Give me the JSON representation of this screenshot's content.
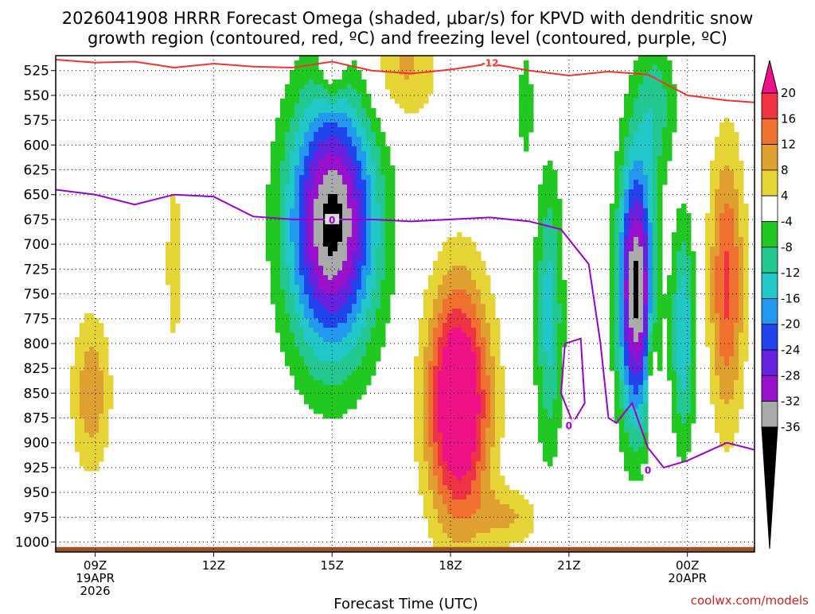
{
  "title_line1": "2026041908 HRRR Forecast Omega (shaded, μbar/s) for KPVD with dendritic snow",
  "title_line2": "growth region (contoured, red, ºC) and freezing level (contoured, purple, ºC)",
  "xlabel": "Forecast Time (UTC)",
  "credit": "coolwx.com/models",
  "chart_data": {
    "type": "heatmap",
    "x_range_hours": [
      8,
      25.7
    ],
    "y_range_mb": [
      1010,
      510
    ],
    "y_ticks": [
      525,
      550,
      575,
      600,
      625,
      650,
      675,
      700,
      725,
      750,
      775,
      800,
      825,
      850,
      875,
      900,
      925,
      950,
      975,
      1000
    ],
    "x_ticks": [
      {
        "hour": 9,
        "label": "09Z",
        "sub1": "19APR",
        "sub2": "2026"
      },
      {
        "hour": 12,
        "label": "12Z",
        "sub1": "",
        "sub2": ""
      },
      {
        "hour": 15,
        "label": "15Z",
        "sub1": "",
        "sub2": ""
      },
      {
        "hour": 18,
        "label": "18Z",
        "sub1": "",
        "sub2": ""
      },
      {
        "hour": 21,
        "label": "21Z",
        "sub1": "",
        "sub2": ""
      },
      {
        "hour": 24,
        "label": "00Z",
        "sub1": "20APR",
        "sub2": ""
      }
    ],
    "colorbar": {
      "labels": [
        "20",
        "16",
        "12",
        "8",
        "4",
        "-4",
        "-8",
        "-12",
        "-16",
        "-20",
        "-24",
        "-28",
        "-32",
        "-36"
      ],
      "bins": [
        {
          "lo": 16,
          "hi": 20,
          "color": "#ee3344"
        },
        {
          "lo": 12,
          "hi": 16,
          "color": "#f07030"
        },
        {
          "lo": 8,
          "hi": 12,
          "color": "#e0a030"
        },
        {
          "lo": 4,
          "hi": 8,
          "color": "#e6d436"
        },
        {
          "lo": -4,
          "hi": 4,
          "color": "#ffffff"
        },
        {
          "lo": -8,
          "hi": -4,
          "color": "#22c822"
        },
        {
          "lo": -12,
          "hi": -8,
          "color": "#22c890"
        },
        {
          "lo": -16,
          "hi": -12,
          "color": "#22c8c8"
        },
        {
          "lo": -20,
          "hi": -16,
          "color": "#2299ee"
        },
        {
          "lo": -24,
          "hi": -20,
          "color": "#2244ee"
        },
        {
          "lo": -28,
          "hi": -24,
          "color": "#6622dd"
        },
        {
          "lo": -32,
          "hi": -28,
          "color": "#9911cc"
        },
        {
          "lo": -36,
          "hi": -32,
          "color": "#aaaaaa"
        }
      ],
      "above_color": "#ee1188",
      "below_color": "#000000"
    },
    "omega_features": [
      {
        "name": "upward-motion-core-15z",
        "hour": 15.0,
        "pressure": 680,
        "peak": -38,
        "sx": 1.1,
        "sy": 130
      },
      {
        "name": "upward-motion-core-2130z",
        "hour": 22.7,
        "pressure": 745,
        "peak": -38,
        "sx": 0.45,
        "sy": 130
      },
      {
        "name": "upward-motion-2030z",
        "hour": 20.5,
        "pressure": 770,
        "peak": -14,
        "sx": 0.35,
        "sy": 140
      },
      {
        "name": "upward-motion-2345z",
        "hour": 23.9,
        "pressure": 790,
        "peak": -16,
        "sx": 0.3,
        "sy": 110
      },
      {
        "name": "upward-motion-upper-23z",
        "hour": 23.2,
        "pressure": 560,
        "peak": -10,
        "sx": 0.5,
        "sy": 70
      },
      {
        "name": "upward-motion-upper-20z",
        "hour": 19.9,
        "pressure": 560,
        "peak": -7,
        "sx": 0.2,
        "sy": 60
      },
      {
        "name": "sinking-motion-18z",
        "hour": 18.2,
        "pressure": 860,
        "peak": 30,
        "sx": 0.8,
        "sy": 120
      },
      {
        "name": "sinking-motion-1030z",
        "hour": 8.9,
        "pressure": 850,
        "peak": 11,
        "sx": 0.5,
        "sy": 80
      },
      {
        "name": "sinking-motion-0030z",
        "hour": 25.0,
        "pressure": 740,
        "peak": 17,
        "sx": 0.45,
        "sy": 140
      },
      {
        "name": "sinking-motion-2330z",
        "hour": 23.1,
        "pressure": 830,
        "peak": 10,
        "sx": 0.12,
        "sy": 60
      },
      {
        "name": "sinking-motion-17z",
        "hour": 16.8,
        "pressure": 520,
        "peak": 9,
        "sx": 0.9,
        "sy": 60
      },
      {
        "name": "sinking-motion-15z-top",
        "hour": 15.0,
        "pressure": 520,
        "peak": 9,
        "sx": 0.35,
        "sy": 35
      },
      {
        "name": "sinking-motion-11z",
        "hour": 11.0,
        "pressure": 720,
        "peak": 5,
        "sx": 0.35,
        "sy": 150
      },
      {
        "name": "sinking-motion-1930z-low",
        "hour": 19.5,
        "pressure": 975,
        "peak": 8,
        "sx": 0.8,
        "sy": 30
      }
    ],
    "dendritic_growth_minus12C_line": [
      [
        8.0,
        514
      ],
      [
        9.0,
        517
      ],
      [
        10.0,
        516
      ],
      [
        11.0,
        522
      ],
      [
        12.0,
        518
      ],
      [
        13.0,
        521
      ],
      [
        14.0,
        522
      ],
      [
        15.0,
        516
      ],
      [
        16.0,
        525
      ],
      [
        17.0,
        528
      ],
      [
        18.0,
        524
      ],
      [
        19.0,
        518
      ],
      [
        20.0,
        525
      ],
      [
        21.0,
        530
      ],
      [
        22.0,
        526
      ],
      [
        23.0,
        529
      ],
      [
        24.0,
        550
      ],
      [
        25.0,
        555
      ],
      [
        25.7,
        557
      ]
    ],
    "dendritic_growth_label": "-12",
    "freezing_level_0C_line": [
      [
        8.0,
        645
      ],
      [
        9.0,
        650
      ],
      [
        10.0,
        660
      ],
      [
        11.0,
        650
      ],
      [
        12.0,
        652
      ],
      [
        13.0,
        672
      ],
      [
        14.0,
        675
      ],
      [
        15.0,
        675
      ],
      [
        16.0,
        675
      ],
      [
        17.0,
        677
      ],
      [
        18.0,
        675
      ],
      [
        19.0,
        673
      ],
      [
        20.0,
        677
      ],
      [
        20.8,
        685
      ],
      [
        21.5,
        720
      ],
      [
        21.8,
        800
      ],
      [
        22.0,
        875
      ],
      [
        22.2,
        880
      ],
      [
        22.6,
        860
      ],
      [
        23.0,
        905
      ],
      [
        23.4,
        925
      ],
      [
        24.0,
        918
      ],
      [
        25.0,
        900
      ],
      [
        25.7,
        907
      ]
    ],
    "freezing_level_loop": [
      [
        20.9,
        800
      ],
      [
        21.3,
        795
      ],
      [
        21.4,
        860
      ],
      [
        21.1,
        880
      ],
      [
        20.8,
        850
      ],
      [
        20.9,
        800
      ]
    ],
    "freezing_level_label": "0",
    "terrain_color": "#a0522d"
  }
}
